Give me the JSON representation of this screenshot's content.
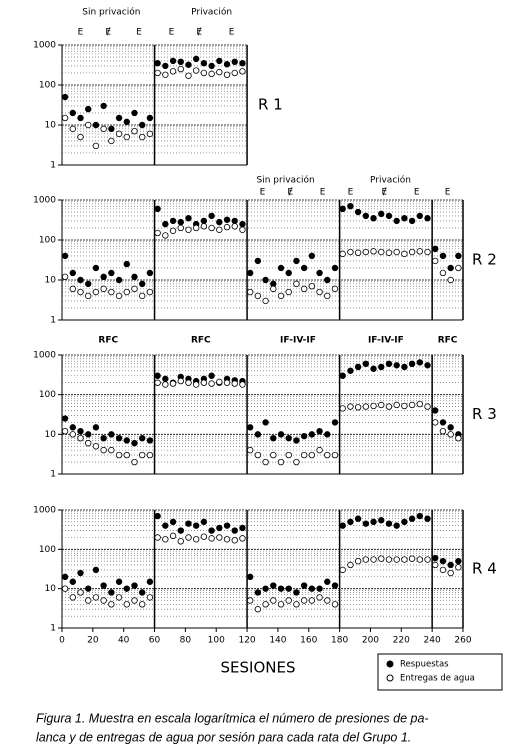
{
  "chart_data": [
    {
      "type": "scatter",
      "label": "R 1",
      "xlim": [
        0,
        120
      ],
      "ylim": [
        1,
        1000
      ],
      "yticks": [
        1,
        10,
        100,
        1000
      ],
      "log_y": true,
      "grid": true,
      "dividers": [
        60
      ],
      "phase_labels": [
        {
          "text": "Sin privación",
          "x": 32
        },
        {
          "text": "Privación",
          "x": 97
        }
      ],
      "e_labels": [
        {
          "text": "E",
          "x": 12
        },
        {
          "text": "Ɇ",
          "x": 30
        },
        {
          "text": "E",
          "x": 50
        },
        {
          "text": "E",
          "x": 71
        },
        {
          "text": "Ɇ",
          "x": 89
        },
        {
          "text": "E",
          "x": 110
        }
      ],
      "x": [
        2,
        7,
        12,
        17,
        22,
        27,
        32,
        37,
        42,
        47,
        52,
        57,
        62,
        67,
        72,
        77,
        82,
        87,
        92,
        97,
        102,
        107,
        112,
        117
      ],
      "series": [
        {
          "name": "Respuestas",
          "color": "#000000",
          "marker": "filled",
          "values": [
            50,
            20,
            15,
            25,
            10,
            30,
            8,
            15,
            12,
            20,
            10,
            15,
            350,
            300,
            400,
            380,
            320,
            450,
            350,
            300,
            400,
            330,
            380,
            350
          ]
        },
        {
          "name": "Entregas de agua",
          "color": "#000000",
          "marker": "open",
          "values": [
            15,
            8,
            5,
            10,
            3,
            8,
            4,
            6,
            5,
            7,
            5,
            6,
            200,
            180,
            220,
            250,
            170,
            230,
            200,
            190,
            210,
            180,
            200,
            220
          ]
        }
      ]
    },
    {
      "type": "scatter",
      "label": "R 2",
      "xlim": [
        0,
        260
      ],
      "ylim": [
        1,
        1000
      ],
      "yticks": [
        1,
        10,
        100,
        1000
      ],
      "log_y": true,
      "grid": true,
      "dividers": [
        60,
        120,
        180,
        240
      ],
      "phase_labels": [
        {
          "text": "Sin privación",
          "x": 145
        },
        {
          "text": "Privación",
          "x": 213
        }
      ],
      "e_labels": [
        {
          "text": "E",
          "x": 130
        },
        {
          "text": "Ɇ",
          "x": 148
        },
        {
          "text": "E",
          "x": 169
        },
        {
          "text": "E",
          "x": 187
        },
        {
          "text": "Ɇ",
          "x": 209
        },
        {
          "text": "E",
          "x": 230
        },
        {
          "text": "E",
          "x": 250
        }
      ],
      "x": [
        2,
        7,
        12,
        17,
        22,
        27,
        32,
        37,
        42,
        47,
        52,
        57,
        62,
        67,
        72,
        77,
        82,
        87,
        92,
        97,
        102,
        107,
        112,
        117,
        122,
        127,
        132,
        137,
        142,
        147,
        152,
        157,
        162,
        167,
        172,
        177,
        182,
        187,
        192,
        197,
        202,
        207,
        212,
        217,
        222,
        227,
        232,
        237,
        242,
        247,
        252,
        257
      ],
      "series": [
        {
          "name": "Respuestas",
          "color": "#000000",
          "marker": "filled",
          "values": [
            40,
            15,
            10,
            8,
            20,
            12,
            15,
            10,
            25,
            12,
            8,
            15,
            600,
            250,
            300,
            280,
            350,
            250,
            300,
            400,
            280,
            320,
            300,
            250,
            15,
            30,
            10,
            8,
            20,
            15,
            30,
            20,
            40,
            15,
            10,
            20,
            600,
            700,
            500,
            400,
            350,
            450,
            400,
            300,
            350,
            300,
            400,
            350,
            60,
            40,
            20,
            40
          ]
        },
        {
          "name": "Entregas de agua",
          "color": "#000000",
          "marker": "open",
          "values": [
            12,
            6,
            5,
            4,
            5,
            6,
            5,
            4,
            5,
            6,
            4,
            5,
            150,
            130,
            170,
            200,
            180,
            200,
            220,
            200,
            180,
            210,
            220,
            180,
            5,
            4,
            3,
            6,
            4,
            5,
            8,
            6,
            7,
            5,
            4,
            6,
            45,
            50,
            48,
            50,
            52,
            50,
            48,
            50,
            45,
            50,
            52,
            50,
            30,
            15,
            10,
            20
          ]
        }
      ]
    },
    {
      "type": "scatter",
      "label": "R 3",
      "xlim": [
        0,
        260
      ],
      "ylim": [
        1,
        1000
      ],
      "yticks": [
        1,
        10,
        100,
        1000
      ],
      "log_y": true,
      "grid": true,
      "dividers": [
        60,
        120,
        180,
        240
      ],
      "phase_labels": [
        {
          "text": "RFC",
          "x": 30
        },
        {
          "text": "RFC",
          "x": 90
        },
        {
          "text": "IF-IV-IF",
          "x": 153
        },
        {
          "text": "IF-IV-IF",
          "x": 210
        },
        {
          "text": "RFC",
          "x": 250
        }
      ],
      "e_labels": [],
      "x": [
        2,
        7,
        12,
        17,
        22,
        27,
        32,
        37,
        42,
        47,
        52,
        57,
        62,
        67,
        72,
        77,
        82,
        87,
        92,
        97,
        102,
        107,
        112,
        117,
        122,
        127,
        132,
        137,
        142,
        147,
        152,
        157,
        162,
        167,
        172,
        177,
        182,
        187,
        192,
        197,
        202,
        207,
        212,
        217,
        222,
        227,
        232,
        237,
        242,
        247,
        252,
        257
      ],
      "series": [
        {
          "name": "Respuestas",
          "color": "#000000",
          "marker": "filled",
          "values": [
            25,
            15,
            12,
            10,
            15,
            8,
            10,
            8,
            7,
            6,
            8,
            7,
            300,
            250,
            200,
            280,
            250,
            220,
            250,
            300,
            200,
            250,
            230,
            220,
            15,
            10,
            20,
            8,
            10,
            8,
            7,
            9,
            10,
            12,
            10,
            20,
            300,
            400,
            500,
            600,
            450,
            500,
            600,
            550,
            500,
            600,
            650,
            550,
            40,
            20,
            15,
            10
          ]
        },
        {
          "name": "Entregas de agua",
          "color": "#000000",
          "marker": "open",
          "values": [
            12,
            10,
            8,
            6,
            5,
            4,
            4,
            3,
            3,
            2,
            3,
            3,
            200,
            180,
            190,
            220,
            200,
            180,
            200,
            190,
            210,
            200,
            190,
            180,
            4,
            3,
            2,
            3,
            2,
            3,
            2,
            3,
            3,
            4,
            3,
            3,
            45,
            50,
            48,
            50,
            52,
            55,
            50,
            55,
            52,
            55,
            58,
            50,
            20,
            12,
            10,
            8
          ]
        }
      ]
    },
    {
      "type": "scatter",
      "label": "R 4",
      "xlim": [
        0,
        260
      ],
      "ylim": [
        1,
        1000
      ],
      "yticks": [
        1,
        10,
        100,
        1000
      ],
      "log_y": true,
      "grid": true,
      "dividers": [
        60,
        120,
        180,
        240
      ],
      "xticks": [
        0,
        20,
        40,
        60,
        80,
        100,
        120,
        140,
        160,
        180,
        200,
        220,
        240,
        260
      ],
      "xlabel": "SESIONES",
      "phase_labels": [],
      "e_labels": [],
      "x": [
        2,
        7,
        12,
        17,
        22,
        27,
        32,
        37,
        42,
        47,
        52,
        57,
        62,
        67,
        72,
        77,
        82,
        87,
        92,
        97,
        102,
        107,
        112,
        117,
        122,
        127,
        132,
        137,
        142,
        147,
        152,
        157,
        162,
        167,
        172,
        177,
        182,
        187,
        192,
        197,
        202,
        207,
        212,
        217,
        222,
        227,
        232,
        237,
        242,
        247,
        252,
        257
      ],
      "series": [
        {
          "name": "Respuestas",
          "color": "#000000",
          "marker": "filled",
          "values": [
            20,
            15,
            25,
            10,
            30,
            12,
            8,
            15,
            10,
            12,
            8,
            15,
            700,
            400,
            500,
            300,
            450,
            400,
            500,
            300,
            350,
            400,
            300,
            350,
            20,
            8,
            10,
            12,
            10,
            10,
            8,
            12,
            10,
            10,
            15,
            12,
            400,
            500,
            600,
            450,
            500,
            550,
            450,
            400,
            500,
            600,
            700,
            600,
            60,
            50,
            40,
            50
          ]
        },
        {
          "name": "Entregas de agua",
          "color": "#000000",
          "marker": "open",
          "values": [
            10,
            6,
            8,
            5,
            6,
            5,
            4,
            6,
            4,
            5,
            4,
            6,
            200,
            180,
            220,
            160,
            200,
            180,
            210,
            190,
            200,
            180,
            170,
            190,
            5,
            3,
            4,
            5,
            4,
            5,
            4,
            5,
            5,
            6,
            5,
            4,
            30,
            40,
            50,
            55,
            55,
            58,
            55,
            55,
            55,
            58,
            55,
            55,
            40,
            30,
            25,
            35
          ]
        }
      ]
    }
  ],
  "caption": [
    "Figura 1. Muestra en escala logarítmica el número de presiones de pa-",
    "lanca y de entregas de agua por sesión para cada rata del Grupo 1."
  ]
}
